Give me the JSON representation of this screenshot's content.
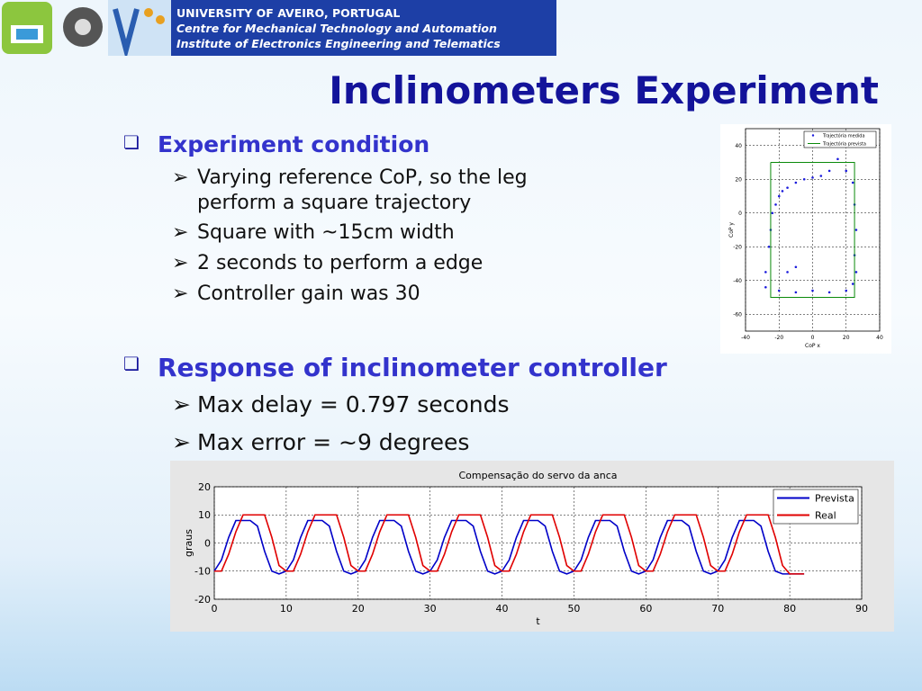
{
  "header": {
    "lines": [
      "UNIVERSITY OF AVEIRO, PORTUGAL",
      "Centre for Mechanical Technology and Automation",
      "Institute of Electronics Engineering and Telematics"
    ]
  },
  "title": "Inclinometers Experiment",
  "sections": [
    {
      "heading": "Experiment condition",
      "items": [
        "Varying reference CoP, so the leg perform a square trajectory",
        "Square with ~15cm width",
        "2 seconds to perform a edge",
        "Controller gain was 30"
      ]
    },
    {
      "heading": "Response of inclinometer controller",
      "items": [
        "Max delay = 0.797 seconds",
        "Max error = ~9 degrees"
      ]
    }
  ],
  "chart_data": [
    {
      "type": "scatter",
      "xlabel": "CoP x",
      "ylabel": "CoP y",
      "xlim": [
        -40,
        40
      ],
      "xticks": [
        -40,
        -20,
        0,
        20,
        40
      ],
      "ylim": [
        -70,
        50
      ],
      "yticks": [
        -60,
        -40,
        -20,
        0,
        20,
        40
      ],
      "grid": true,
      "legend": "upper right",
      "series": [
        {
          "name": "Trajectória medida",
          "color": "#1a1adc",
          "marker": "dot",
          "x": [
            -15,
            -10,
            -5,
            0,
            5,
            10,
            15,
            20,
            24,
            25,
            26,
            25,
            26,
            24,
            20,
            10,
            0,
            -10,
            -20,
            -28,
            -28,
            -26,
            -25,
            -24,
            -22,
            -20,
            -18,
            -15,
            -10
          ],
          "values": [
            15,
            18,
            20,
            21,
            22,
            25,
            32,
            25,
            18,
            5,
            -10,
            -25,
            -35,
            -42,
            -46,
            -47,
            -46,
            -47,
            -46,
            -44,
            -35,
            -20,
            -10,
            0,
            5,
            10,
            13,
            -35,
            -32
          ]
        },
        {
          "name": "Trajectória prevista",
          "color": "#0a8a0a",
          "marker": "none",
          "x": [
            -25,
            25,
            25,
            -25,
            -25
          ],
          "values": [
            30,
            30,
            -50,
            -50,
            30
          ]
        }
      ]
    },
    {
      "type": "line",
      "title": "Compensação do servo da anca",
      "xlabel": "t",
      "ylabel": "graus",
      "xlim": [
        0,
        90
      ],
      "xticks": [
        0,
        10,
        20,
        30,
        40,
        50,
        60,
        70,
        80,
        90
      ],
      "ylim": [
        -20,
        20
      ],
      "yticks": [
        -20,
        -10,
        0,
        10,
        20
      ],
      "grid": true,
      "legend": "upper right",
      "x": [
        0,
        1,
        2,
        3,
        4,
        5,
        6,
        7,
        8,
        9,
        10,
        11,
        12,
        13,
        14,
        15,
        16,
        17,
        18,
        19,
        20,
        21,
        22,
        23,
        24,
        25,
        26,
        27,
        28,
        29,
        30,
        31,
        32,
        33,
        34,
        35,
        36,
        37,
        38,
        39,
        40,
        41,
        42,
        43,
        44,
        45,
        46,
        47,
        48,
        49,
        50,
        51,
        52,
        53,
        54,
        55,
        56,
        57,
        58,
        59,
        60,
        61,
        62,
        63,
        64,
        65,
        66,
        67,
        68,
        69,
        70,
        71,
        72,
        73,
        74,
        75,
        76,
        77,
        78,
        79,
        80,
        81,
        82
      ],
      "series": [
        {
          "name": "Prevista",
          "color": "#0000c8",
          "values": [
            -10,
            -6,
            2,
            8,
            8,
            8,
            6,
            -3,
            -10,
            -11,
            -10,
            -6,
            2,
            8,
            8,
            8,
            6,
            -3,
            -10,
            -11,
            -10,
            -6,
            2,
            8,
            8,
            8,
            6,
            -3,
            -10,
            -11,
            -10,
            -6,
            2,
            8,
            8,
            8,
            6,
            -3,
            -10,
            -11,
            -10,
            -6,
            2,
            8,
            8,
            8,
            6,
            -3,
            -10,
            -11,
            -10,
            -6,
            2,
            8,
            8,
            8,
            6,
            -3,
            -10,
            -11,
            -10,
            -6,
            2,
            8,
            8,
            8,
            6,
            -3,
            -10,
            -11,
            -10,
            -6,
            2,
            8,
            8,
            8,
            6,
            -3,
            -10,
            -11,
            -11,
            -11,
            -11
          ]
        },
        {
          "name": "Real",
          "color": "#e00000",
          "values": [
            -10,
            -10,
            -4,
            4,
            10,
            10,
            10,
            10,
            2,
            -8,
            -10,
            -10,
            -4,
            4,
            10,
            10,
            10,
            10,
            2,
            -8,
            -10,
            -10,
            -4,
            4,
            10,
            10,
            10,
            10,
            2,
            -8,
            -10,
            -10,
            -4,
            4,
            10,
            10,
            10,
            10,
            2,
            -8,
            -10,
            -10,
            -4,
            4,
            10,
            10,
            10,
            10,
            2,
            -8,
            -10,
            -10,
            -4,
            4,
            10,
            10,
            10,
            10,
            2,
            -8,
            -10,
            -10,
            -4,
            4,
            10,
            10,
            10,
            10,
            2,
            -8,
            -10,
            -10,
            -4,
            4,
            10,
            10,
            10,
            10,
            2,
            -8,
            -11,
            -11,
            -11
          ]
        }
      ]
    }
  ]
}
